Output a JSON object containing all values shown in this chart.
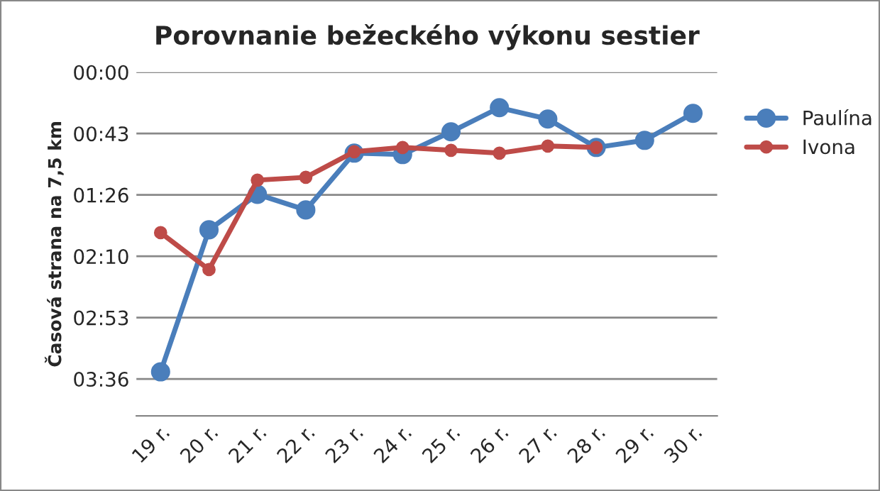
{
  "chart_data": {
    "type": "line",
    "title": "Porovnanie bežeckého výkonu sestier",
    "ylabel": "Časová strana na 7,5 km",
    "categories": [
      "19 r.",
      "20 r.",
      "21 r.",
      "22 r.",
      "23 r.",
      "24 r.",
      "25 r.",
      "26 r.",
      "27 r.",
      "28 r.",
      "29 r.",
      "30 r."
    ],
    "series": [
      {
        "name": "Paulína",
        "color": "#4a7ebb",
        "values": [
          211,
          111,
          86,
          97,
          57,
          58,
          42,
          25,
          33,
          53,
          48,
          29
        ]
      },
      {
        "name": "Ivona",
        "color": "#be4b48",
        "values": [
          113,
          139,
          76,
          74,
          56,
          53,
          55,
          57,
          52,
          53,
          null,
          null
        ]
      }
    ],
    "ylim": [
      242,
      0
    ],
    "yticks": [
      {
        "value": 0,
        "label": "00:00"
      },
      {
        "value": 43.2,
        "label": "00:43"
      },
      {
        "value": 86.4,
        "label": "01:26"
      },
      {
        "value": 129.6,
        "label": "02:10"
      },
      {
        "value": 172.8,
        "label": "02:53"
      },
      {
        "value": 216,
        "label": "03:36"
      }
    ],
    "grid": "y",
    "legend": "right",
    "marker": "circle",
    "line_style": "solid"
  }
}
